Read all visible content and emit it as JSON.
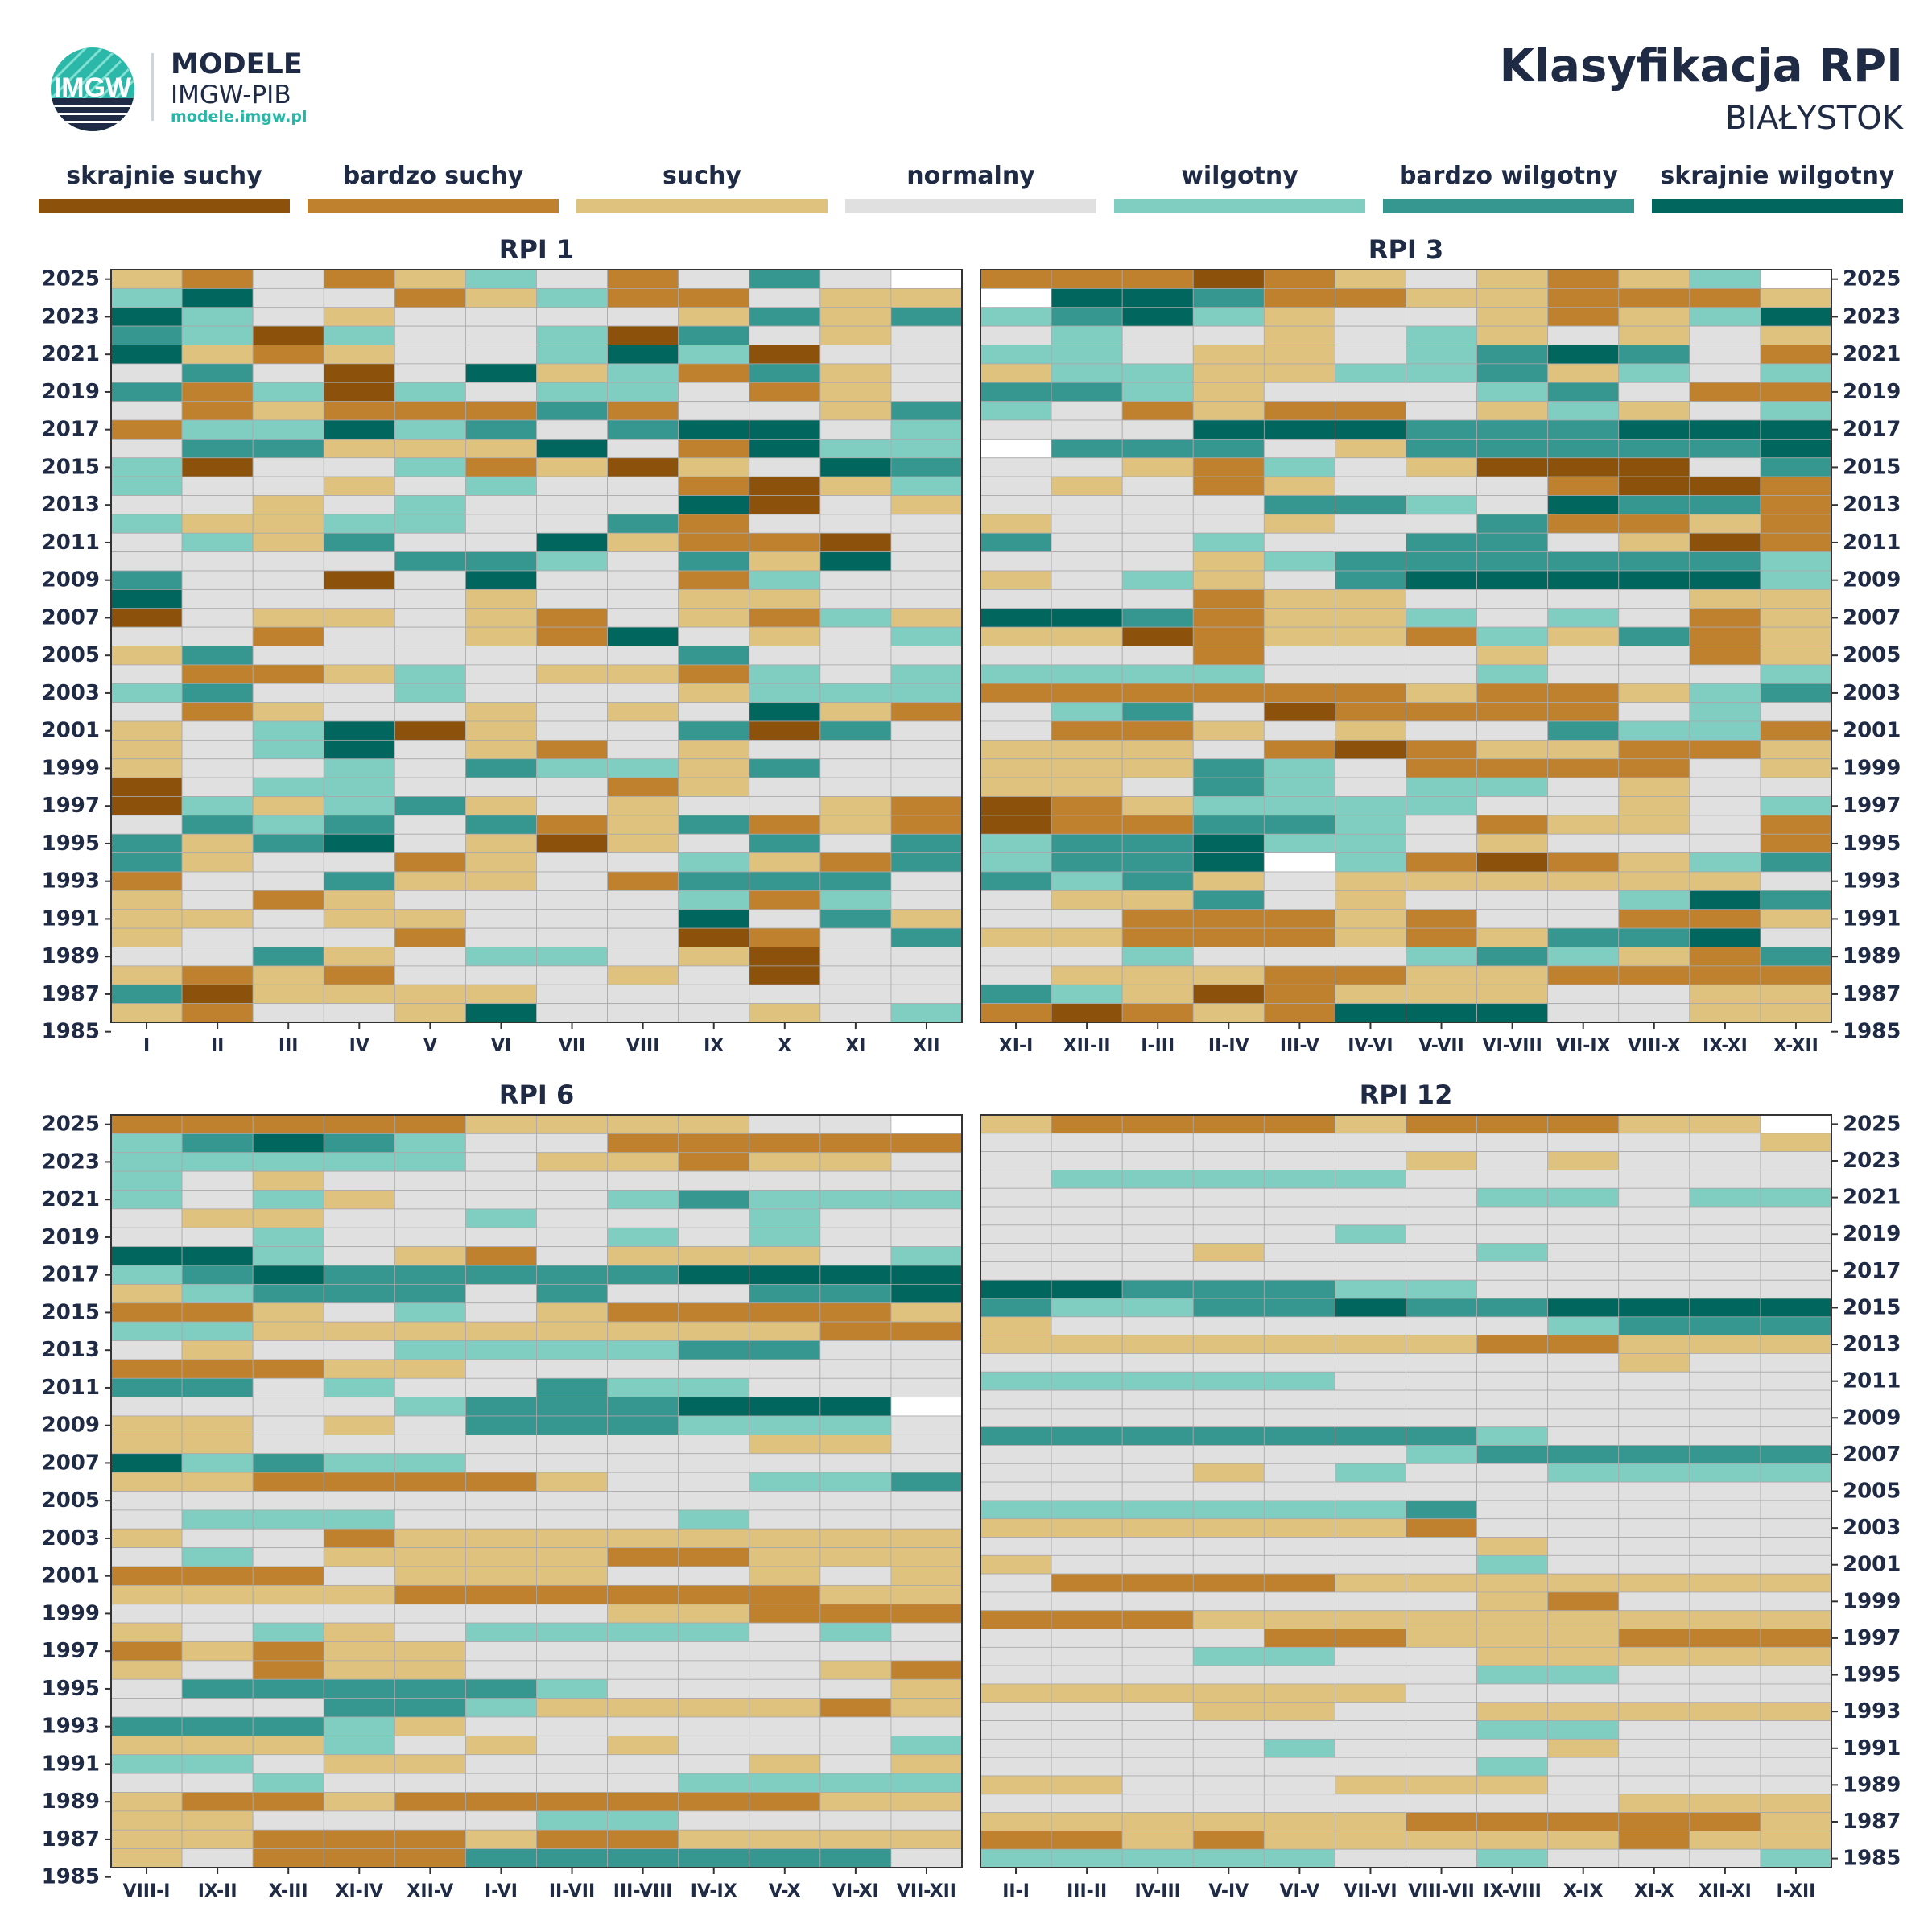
{
  "header": {
    "brand_title": "MODELE",
    "brand_sub": "IMGW-PIB",
    "brand_url": "modele.imgw.pl",
    "logo_text": "IMGW",
    "title": "Klasyfikacja RPI",
    "subtitle": "BIAŁYSTOK"
  },
  "legend": {
    "items": [
      {
        "label": "skrajnie suchy",
        "color": "#8c510a"
      },
      {
        "label": "bardzo suchy",
        "color": "#bf812d"
      },
      {
        "label": "suchy",
        "color": "#dfc27d"
      },
      {
        "label": "normalny",
        "color": "#e0e0e0"
      },
      {
        "label": "wilgotny",
        "color": "#80cdc1"
      },
      {
        "label": "bardzo wilgotny",
        "color": "#35978f"
      },
      {
        "label": "skrajnie wilgotny",
        "color": "#01665e"
      }
    ]
  },
  "chart_data": [
    {
      "type": "heatmap",
      "title": "RPI 1",
      "x": [
        "I",
        "II",
        "III",
        "IV",
        "V",
        "VI",
        "VII",
        "VIII",
        "IX",
        "X",
        "XI",
        "XII"
      ],
      "y_tick_labels": [
        "2025",
        "2023",
        "2021",
        "2019",
        "2017",
        "2015",
        "2013",
        "2011",
        "2009",
        "2007",
        "2005",
        "2003",
        "2001",
        "1999",
        "1997",
        "1995",
        "1993",
        "1991",
        "1989",
        "1987",
        "1985"
      ],
      "year_range": [
        1985,
        2025
      ],
      "class_scale": {
        "-3": "skrajnie suchy",
        "-2": "bardzo suchy",
        "-1": "suchy",
        "0": "normalny",
        "1": "wilgotny",
        "2": "bardzo wilgotny",
        "3": "skrajnie wilgotny"
      },
      "rows_top_to_bottom": [
        "-1,-2,0,-2,-1,1,0,-2,0,2,0,x",
        "1,3,0,0,-2,-1,1,-2,-2,0,-1,-1",
        "3,1,0,-1,0,0,0,0,-1,2,-1,2",
        "2,1,-3,1,0,0,1,-3,2,0,-1,0",
        "3,-1,-2,-1,0,0,1,3,1,-3,0,0",
        "0,2,0,-3,0,3,-1,1,-2,2,-1,0",
        "2,-2,1,-3,1,0,1,1,0,-2,-1,0",
        "0,-2,-1,-2,-2,-2,2,-2,0,0,-1,2",
        "-2,1,1,3,1,2,0,2,3,3,0,1",
        "0,2,2,-1,-1,-1,3,0,-2,3,1,1",
        "1,-3,0,0,1,-2,-1,-3,-1,0,3,2",
        "1,0,0,-1,0,1,0,0,-2,-3,-1,1",
        "0,0,-1,0,1,0,0,0,3,-3,0,-1",
        "1,-1,-1,1,1,0,0,2,-2,0,0,0",
        "0,1,-1,2,0,0,3,-1,-2,-2,-3,0",
        "0,0,0,0,2,2,1,0,2,-1,3,0",
        "2,0,0,-3,0,3,0,0,-2,1,0,0",
        "3,0,0,0,0,-1,0,0,-1,-1,0,0",
        "-3,0,-1,-1,0,-1,-2,0,-1,-2,1,-1",
        "0,0,-2,0,0,-1,-2,3,0,-1,0,1",
        "-1,2,0,0,0,0,0,0,2,0,0,0",
        "0,-2,-2,-1,1,0,-1,-1,-2,1,0,1",
        "1,2,0,0,1,0,0,0,-1,1,1,1",
        "0,-2,-1,0,0,-1,0,-1,0,3,-1,-2",
        "-1,0,1,3,-3,-1,0,0,2,-3,2,0",
        "-1,0,1,3,0,-1,-2,0,-1,0,0,0",
        "-1,0,0,1,0,2,1,1,-1,2,0,0",
        "-3,0,1,1,0,0,0,-2,-1,0,0,0",
        "-3,1,-1,1,2,-1,0,-1,0,0,-1,-2",
        "0,2,1,2,0,2,-2,-1,2,-2,-1,-2",
        "2,-1,2,3,0,-1,-3,-1,0,2,0,2",
        "2,-1,0,0,-2,-1,0,0,1,-1,-2,2",
        "-2,0,0,2,-1,-1,0,-2,2,2,2,0",
        "-1,0,-2,-1,0,0,0,0,1,-2,1,0",
        "-1,-1,0,-1,-1,0,0,0,3,0,2,-1",
        "-1,0,0,0,-2,0,0,0,-3,-2,0,2",
        "0,0,2,-1,0,1,1,0,-1,-3,0,0",
        "-1,-2,-1,-2,0,0,0,-1,0,-3,0,0",
        "2,-3,-1,-1,-1,-1,0,0,0,0,0,0",
        "-1,-2,0,0,-1,3,0,0,0,-1,0,1"
      ]
    },
    {
      "type": "heatmap",
      "title": "RPI 3",
      "x": [
        "XI-I",
        "XII-II",
        "I-III",
        "II-IV",
        "III-V",
        "IV-VI",
        "V-VII",
        "VI-VIII",
        "VII-IX",
        "VIII-X",
        "IX-XI",
        "X-XII"
      ],
      "y_tick_labels": [
        "2025",
        "2023",
        "2021",
        "2019",
        "2017",
        "2015",
        "2013",
        "2011",
        "2009",
        "2007",
        "2005",
        "2003",
        "2001",
        "1999",
        "1997",
        "1995",
        "1993",
        "1991",
        "1989",
        "1987",
        "1985"
      ],
      "year_range": [
        1985,
        2025
      ],
      "rows_top_to_bottom": [
        "-2,-2,-2,-3,-2,-1,0,-1,-2,-1,1,x",
        "x,3,3,2,-2,-2,-1,-1,-2,-2,-2,-1",
        "1,2,3,1,-1,0,0,-1,-2,-1,1,3",
        "0,1,0,0,-1,0,1,-1,0,-1,0,-1",
        "1,1,0,-1,-1,0,1,2,3,2,0,-2",
        "-1,1,1,-1,-1,1,1,2,-1,1,0,1",
        "2,2,1,-1,0,0,0,1,2,0,-2,-2",
        "1,0,-2,-1,-2,-2,0,-1,1,-1,0,1",
        "0,0,0,3,3,3,2,2,2,3,3,3",
        "x,2,2,2,0,-1,2,2,2,2,2,3",
        "0,0,-1,-2,1,0,-1,-3,-3,-3,0,2",
        "0,-1,0,-2,-1,0,0,0,-2,-3,-3,-2",
        "0,0,0,0,2,2,1,0,3,2,2,-2",
        "-1,0,0,0,-1,0,0,2,-2,-2,-1,-2",
        "2,0,0,1,0,0,2,2,0,-1,-3,-2",
        "0,0,0,-1,1,2,2,2,2,2,2,1",
        "-1,0,1,-1,0,2,3,3,3,3,3,1",
        "0,0,0,-2,-1,-1,0,0,0,0,-1,-1",
        "3,3,2,-2,-1,-1,1,0,1,0,-2,-1",
        "-1,-1,-3,-2,-1,-1,-2,1,-1,2,-2,-1",
        "0,0,0,-2,0,0,0,-1,0,0,-2,-1",
        "1,1,1,1,0,0,0,1,0,0,0,1",
        "-2,-2,-2,-2,-2,-2,-1,-2,-2,-1,1,2",
        "0,1,2,0,-3,-2,-2,-2,-2,0,1,0",
        "0,-2,-2,-1,0,-1,0,0,2,1,1,-2",
        "-1,-1,-1,0,-2,-3,-2,-1,-1,-2,-2,-1",
        "-1,-1,-1,2,1,0,-2,-2,-2,-2,0,-1",
        "-1,-1,0,2,1,0,1,1,0,-1,0,0",
        "-3,-2,-1,1,1,1,1,0,0,-1,0,1",
        "-3,-2,-2,2,2,1,0,-2,-1,-1,0,-2",
        "1,2,2,3,1,1,0,-1,0,0,0,-2",
        "1,2,2,3,x,1,-2,-3,-2,-1,1,2",
        "2,1,2,-1,0,-1,-1,-1,-1,-1,-1,0",
        "0,-1,-1,2,0,-1,0,0,0,1,3,2",
        "0,0,-2,-2,-2,-1,-2,0,0,-2,-2,-1",
        "-1,-1,-2,-2,-2,-1,-2,-1,2,2,3,0",
        "0,0,1,0,0,0,1,2,1,-1,-2,2",
        "0,-1,-1,-1,-2,-2,-1,-1,-2,-2,-2,-2",
        "2,1,-1,-3,-2,-1,-1,-1,0,0,-1,-1",
        "-2,-3,-2,-1,-2,3,3,3,0,0,-1,-1"
      ]
    },
    {
      "type": "heatmap",
      "title": "RPI 6",
      "x": [
        "VIII-I",
        "IX-II",
        "X-III",
        "XI-IV",
        "XII-V",
        "I-VI",
        "II-VII",
        "III-VIII",
        "IV-IX",
        "V-X",
        "VI-XI",
        "VII-XII"
      ],
      "y_tick_labels": [
        "2025",
        "2023",
        "2021",
        "2019",
        "2017",
        "2015",
        "2013",
        "2011",
        "2009",
        "2007",
        "2005",
        "2003",
        "2001",
        "1999",
        "1997",
        "1995",
        "1993",
        "1991",
        "1989",
        "1987",
        "1985"
      ],
      "year_range": [
        1985,
        2025
      ],
      "rows_top_to_bottom": [
        "-2,-2,-2,-2,-2,-1,-1,-1,-1,0,0,x",
        "1,2,3,2,1,0,0,-2,-2,-2,-2,-2",
        "1,1,1,1,1,0,-1,-1,-2,-1,-1,0",
        "1,0,-1,0,0,0,0,0,0,0,0,0",
        "1,0,1,-1,0,0,0,1,2,1,1,1",
        "0,-1,-1,0,0,1,0,0,0,1,0,0",
        "0,0,1,0,0,0,0,1,0,1,0,0",
        "3,3,1,0,-1,-2,0,-1,-1,-1,0,1",
        "1,2,3,2,2,2,2,2,3,3,3,3",
        "-1,1,2,2,2,0,2,0,0,2,2,3",
        "-2,-2,-1,0,1,0,-1,-2,-2,-2,-2,-1",
        "1,1,-1,-1,-1,-1,-1,-1,-1,-1,-2,-2",
        "0,-1,0,0,1,1,1,1,2,2,0,0",
        "-2,-2,-2,-1,-1,0,0,0,0,0,0,0",
        "2,2,0,1,0,0,2,1,1,0,0,0",
        "0,0,0,0,1,2,2,2,3,3,3,x",
        "-1,-1,0,-1,0,2,2,2,1,1,1,0",
        "-1,-1,0,0,0,0,0,0,0,-1,-1,0",
        "3,1,2,1,1,0,0,0,0,0,0,0",
        "-1,-1,-2,-2,-2,-2,-1,0,0,1,1,2",
        "0,0,0,0,0,0,0,0,0,0,0,0",
        "0,1,1,1,0,0,0,0,1,0,0,0",
        "-1,0,0,-2,-1,-1,-1,-1,-1,-1,-1,-1",
        "0,1,0,-1,-1,-1,-1,-2,-2,-1,-1,-1",
        "-2,-2,-2,0,-1,-1,-1,0,0,-1,0,-1",
        "-1,-1,-1,-1,-2,-2,-2,-2,-2,-2,-1,-1",
        "0,0,0,0,0,0,0,-1,-1,-2,-2,-2",
        "-1,0,1,-1,0,1,1,1,1,0,1,0",
        "-2,-1,-2,-1,-1,0,0,0,0,0,0,0",
        "-1,0,-2,-1,-1,0,0,0,0,0,-1,-2",
        "0,2,2,2,2,2,1,0,0,0,0,-1",
        "0,0,0,2,2,1,-1,-1,-1,-1,-2,-1",
        "2,2,2,1,-1,0,0,0,0,0,0,0",
        "-1,-1,-1,1,0,-1,0,-1,0,0,0,1",
        "1,1,0,-1,-1,0,0,0,0,-1,0,-1",
        "0,0,1,0,0,0,0,0,1,1,1,1",
        "-1,-2,-2,-1,-2,-2,-2,-2,-2,-2,-1,-1",
        "-1,-1,0,0,0,0,1,1,0,0,0,0",
        "-1,-1,-2,-2,-2,-1,-2,-2,-1,-1,-1,-1",
        "-1,0,-2,-2,-2,2,2,2,2,2,2,0"
      ]
    },
    {
      "type": "heatmap",
      "title": "RPI 12",
      "x": [
        "II-I",
        "III-II",
        "IV-III",
        "V-IV",
        "VI-V",
        "VII-VI",
        "VIII-VII",
        "IX-VIII",
        "X-IX",
        "XI-X",
        "XII-XI",
        "I-XII"
      ],
      "y_tick_labels": [
        "2025",
        "2023",
        "2021",
        "2019",
        "2017",
        "2015",
        "2013",
        "2011",
        "2009",
        "2007",
        "2005",
        "2003",
        "2001",
        "1999",
        "1997",
        "1995",
        "1993",
        "1991",
        "1989",
        "1987",
        "1985"
      ],
      "year_range": [
        1985,
        2025
      ],
      "rows_top_to_bottom": [
        "-1,-2,-2,-2,-2,-1,-2,-2,-2,-1,-1,x",
        "0,0,0,0,0,0,0,0,0,0,0,-1",
        "0,0,0,0,0,0,-1,0,-1,0,0,0",
        "0,1,1,1,1,1,0,0,0,0,0,0",
        "0,0,0,0,0,0,0,1,1,0,1,1",
        "0,0,0,0,0,0,0,0,0,0,0,0",
        "0,0,0,0,0,1,0,0,0,0,0,0",
        "0,0,0,-1,0,0,0,1,0,0,0,0",
        "0,0,0,0,0,0,0,0,0,0,0,0",
        "3,3,2,2,2,1,1,0,0,0,0,0",
        "2,1,1,2,2,3,2,2,3,3,3,3",
        "-1,0,0,0,0,0,0,0,1,2,2,2",
        "-1,-1,-1,-1,-1,-1,-1,-2,-2,-1,-1,-1",
        "0,0,0,0,0,0,0,0,0,-1,0,0",
        "1,1,1,1,1,0,0,0,0,0,0,0",
        "0,0,0,0,0,0,0,0,0,0,0,0",
        "0,0,0,0,0,0,0,0,0,0,0,0",
        "2,2,2,2,2,2,2,1,0,0,0,0",
        "0,0,0,0,0,0,1,2,2,2,2,2",
        "0,0,0,-1,0,1,0,0,1,1,1,1",
        "0,0,0,0,0,0,0,0,0,0,0,0",
        "1,1,1,1,1,1,2,0,0,0,0,0",
        "-1,-1,-1,-1,-1,-1,-2,0,0,0,0,0",
        "0,0,0,0,0,0,0,-1,0,0,0,0",
        "-1,0,0,0,0,0,0,1,0,0,0,0",
        "0,-2,-2,-2,-2,-1,-1,-1,-1,-1,-1,-1",
        "0,0,0,0,0,0,0,-1,-2,0,0,0",
        "-2,-2,-2,-1,-1,-1,-1,-1,-1,-1,-1,-1",
        "0,0,0,0,-2,-2,-1,-1,-1,-2,-2,-2",
        "0,0,0,1,1,0,0,-1,-1,-1,-1,-1",
        "0,0,0,0,0,0,0,1,1,0,0,0",
        "-1,-1,-1,-1,-1,-1,0,0,0,0,0,0",
        "0,0,0,-1,-1,0,0,-1,-1,-1,-1,-1",
        "0,0,0,0,0,0,0,1,1,0,0,0",
        "0,0,0,0,1,0,0,0,-1,0,0,0",
        "0,0,0,0,0,0,0,1,0,0,0,0",
        "-1,-1,0,0,0,-1,-1,-1,0,0,0,0",
        "0,0,0,0,0,0,0,0,0,-1,-1,-1",
        "-1,-1,-1,-1,-1,-1,-2,-2,-2,-2,-2,-1",
        "-2,-2,-1,-2,-1,-1,-1,-1,-1,-2,-1,-1",
        "1,1,1,1,1,0,0,1,0,0,0,1"
      ]
    }
  ]
}
